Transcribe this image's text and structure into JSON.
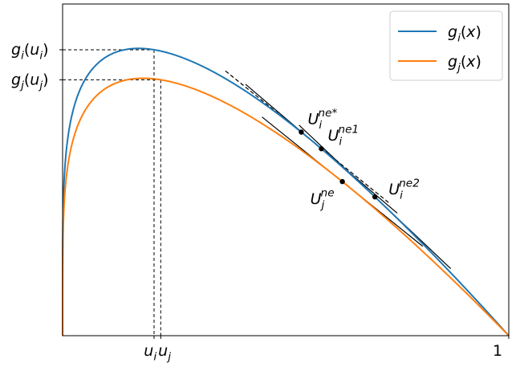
{
  "chart_data": {
    "type": "line",
    "title": "",
    "xlabel": "",
    "ylabel": "",
    "xlim": [
      0,
      1
    ],
    "ylim": [
      0,
      1.16
    ],
    "grid": false,
    "legend_position": "top-right",
    "xticks": [
      {
        "x": 0.205,
        "base": "u",
        "sub": "i"
      },
      {
        "x": 0.22,
        "base": "u",
        "sub": "j"
      },
      {
        "x": 1.0,
        "text": "1"
      }
    ],
    "yticks": [
      {
        "y": 1.0,
        "base": "g",
        "sub": "i",
        "arg": "u",
        "argsub": "i"
      },
      {
        "y": 0.895,
        "base": "g",
        "sub": "j",
        "arg": "u",
        "argsub": "j"
      }
    ],
    "series": [
      {
        "name": "g_i(x)",
        "legend": {
          "base": "g",
          "sub": "i",
          "arg": "x"
        },
        "color": "#1f77b4",
        "function": "peak_scaled",
        "a": 0.205,
        "peak": 1.0
      },
      {
        "name": "g_j(x)",
        "legend": {
          "base": "g",
          "sub": "j",
          "arg": "x"
        },
        "color": "#ff7f0e",
        "function": "peak_scaled",
        "a": 0.22,
        "peak": 0.895
      }
    ],
    "points": [
      {
        "x": 0.535,
        "series": "g_i(x)",
        "label": {
          "base": "U",
          "sub": "i",
          "sup": "ne*"
        },
        "label_anchor": "above-right"
      },
      {
        "x": 0.58,
        "series": "g_i(x)",
        "label": {
          "base": "U",
          "sub": "i",
          "sup": "ne1"
        },
        "label_anchor": "above-right"
      },
      {
        "x": 0.627,
        "series": "g_j(x)",
        "label": {
          "base": "U",
          "sub": "j",
          "sup": "ne"
        },
        "label_anchor": "below-left"
      },
      {
        "x": 0.7,
        "series": "g_i(x)",
        "label": {
          "base": "U",
          "sub": "i",
          "sup": "ne2"
        },
        "label_anchor": "right"
      }
    ],
    "tangents": [
      {
        "x": 0.535,
        "series": "g_i(x)",
        "dx": [
          -0.17,
          0.2
        ],
        "style": "dashed"
      },
      {
        "x": 0.58,
        "series": "g_i(x)",
        "dx": [
          -0.17,
          0.17
        ],
        "style": "solid"
      },
      {
        "x": 0.627,
        "series": "g_j(x)",
        "dx": [
          -0.18,
          0.18
        ],
        "style": "solid"
      },
      {
        "x": 0.7,
        "series": "g_i(x)",
        "dx": [
          -0.17,
          0.17
        ],
        "style": "solid"
      }
    ],
    "guides": [
      {
        "x": 0.205,
        "series": "g_i(x)"
      },
      {
        "x": 0.22,
        "series": "g_j(x)"
      }
    ]
  }
}
